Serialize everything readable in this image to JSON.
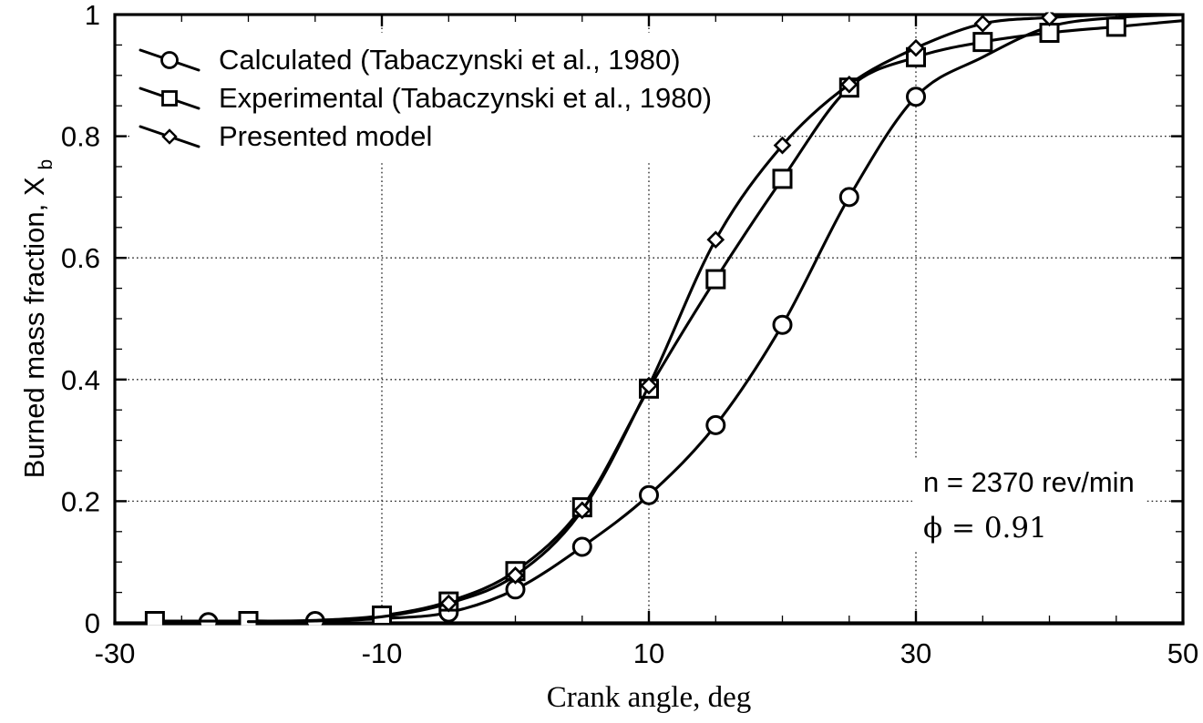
{
  "figure": {
    "background": "#ffffff",
    "ink_color": "#000000"
  },
  "chart_data": {
    "type": "line",
    "title": "",
    "xlabel": "Crank angle, deg",
    "ylabel": "Burned mass fraction, X",
    "ylabel_subscript": "b",
    "xlim": [
      -30,
      50
    ],
    "ylim": [
      0,
      1
    ],
    "x_ticks": [
      -30,
      -10,
      10,
      30,
      50
    ],
    "x_tick_labels": [
      "-30",
      "-10",
      "10",
      "30",
      "50"
    ],
    "x_minor_tick_step": 5,
    "y_ticks": [
      0,
      0.2,
      0.4,
      0.6,
      0.8,
      1
    ],
    "y_tick_labels": [
      "0",
      "0.2",
      "0.4",
      "0.6",
      "0.8",
      "1"
    ],
    "y_minor_tick_step": 0.05,
    "gridlines_x": [
      -10,
      10,
      30
    ],
    "gridlines_y": [
      0.2,
      0.4,
      0.6,
      0.8
    ],
    "grid_style": "dotted",
    "legend_position": "top-left",
    "series": [
      {
        "name": "Calculated (Tabaczynski et al., 1980)",
        "marker": "circle",
        "color": "#000000",
        "points": [
          [
            -23,
            0.001,
            1
          ],
          [
            -15,
            0.003,
            1
          ],
          [
            -10,
            0.007,
            0
          ],
          [
            -5,
            0.017,
            1
          ],
          [
            0,
            0.055,
            1
          ],
          [
            5,
            0.125,
            1
          ],
          [
            10,
            0.21,
            1
          ],
          [
            15,
            0.325,
            1
          ],
          [
            20,
            0.49,
            1
          ],
          [
            25,
            0.7,
            1
          ],
          [
            30,
            0.865,
            1
          ],
          [
            35,
            0.93,
            0
          ],
          [
            40,
            0.98,
            0
          ],
          [
            45,
            0.995,
            0
          ],
          [
            50,
            1,
            0
          ]
        ]
      },
      {
        "name": "Experimental (Tabaczynski et al., 1980)",
        "marker": "square",
        "color": "#000000",
        "points": [
          [
            -27,
            0.003,
            1
          ],
          [
            -20,
            0.003,
            1
          ],
          [
            -15,
            0.004,
            0
          ],
          [
            -10,
            0.012,
            1
          ],
          [
            -5,
            0.035,
            1
          ],
          [
            0,
            0.085,
            1
          ],
          [
            5,
            0.19,
            1
          ],
          [
            10,
            0.385,
            1
          ],
          [
            15,
            0.565,
            1
          ],
          [
            20,
            0.73,
            1
          ],
          [
            25,
            0.88,
            1
          ],
          [
            30,
            0.93,
            1
          ],
          [
            35,
            0.955,
            1
          ],
          [
            40,
            0.97,
            1
          ],
          [
            45,
            0.98,
            1
          ],
          [
            50,
            0.99,
            0
          ]
        ]
      },
      {
        "name": "Presented model",
        "marker": "diamond",
        "color": "#000000",
        "points": [
          [
            -20,
            0.002,
            0
          ],
          [
            -15,
            0.003,
            0
          ],
          [
            -10,
            0.01,
            0
          ],
          [
            -5,
            0.032,
            1
          ],
          [
            0,
            0.078,
            1
          ],
          [
            5,
            0.185,
            1
          ],
          [
            10,
            0.39,
            1
          ],
          [
            15,
            0.63,
            1
          ],
          [
            20,
            0.785,
            1
          ],
          [
            25,
            0.885,
            1
          ],
          [
            30,
            0.945,
            1
          ],
          [
            35,
            0.985,
            1
          ],
          [
            40,
            0.995,
            1
          ],
          [
            45,
            1,
            0
          ],
          [
            50,
            1,
            0
          ]
        ]
      }
    ],
    "annotations": [
      {
        "text": "n = 2370 rev/min",
        "font": "sans"
      },
      {
        "text": "ϕ = 0.91",
        "font": "serif"
      }
    ]
  }
}
